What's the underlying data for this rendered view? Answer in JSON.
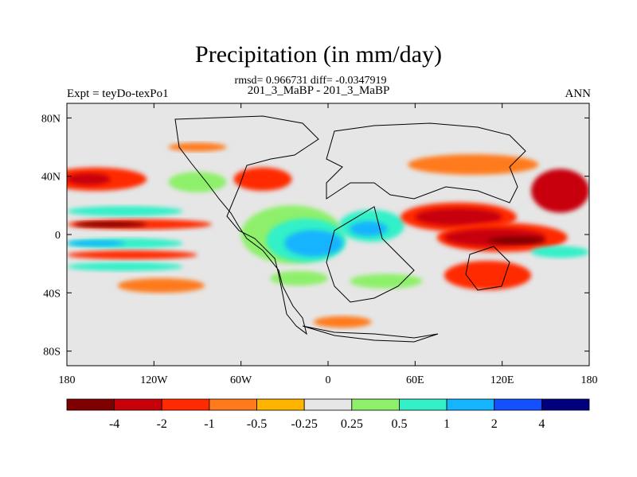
{
  "chart_data": {
    "type": "heatmap",
    "title": "Precipitation (in mm/day)",
    "stats_text": "rmsd= 0.966731 diff= -0.0347919",
    "subtitle": "201_3_MaBP - 201_3_MaBP",
    "left_label": "Expt = teyDo-texPo1",
    "right_label": "ANN",
    "x_ticks": [
      "180",
      "120W",
      "60W",
      "0",
      "60E",
      "120E",
      "180"
    ],
    "x_tick_values": [
      -180,
      -120,
      -60,
      0,
      60,
      120,
      180
    ],
    "y_ticks": [
      "80N",
      "40N",
      "0",
      "40S",
      "80S"
    ],
    "y_tick_values": [
      80,
      40,
      0,
      -40,
      -80
    ],
    "xlim": [
      -180,
      180
    ],
    "ylim": [
      -90,
      90
    ],
    "colorbar": {
      "levels": [
        "-4",
        "-2",
        "-1",
        "-0.5",
        "-0.25",
        "0.25",
        "0.5",
        "1",
        "2",
        "4"
      ],
      "level_values": [
        -4,
        -2,
        -1,
        -0.5,
        -0.25,
        0.25,
        0.5,
        1,
        2,
        4
      ],
      "colors": [
        "#7f0000",
        "#c8000a",
        "#ff2a00",
        "#ff7a1a",
        "#ffb400",
        "#e6e6e6",
        "#8ef06a",
        "#33f0c8",
        "#14b4ff",
        "#1450ff",
        "#00007f"
      ]
    },
    "regions": [
      {
        "name": "north-pacific-dry",
        "lon": -160,
        "lat": 38,
        "width_deg": 70,
        "height_deg": 16,
        "value": -1
      },
      {
        "name": "north-pacific-dry-core",
        "lon": -165,
        "lat": 38,
        "width_deg": 30,
        "height_deg": 8,
        "value": -2
      },
      {
        "name": "north-pacific-band-1",
        "lon": -135,
        "lat": 22,
        "width_deg": 90,
        "height_deg": 8,
        "value": 0.25
      },
      {
        "name": "north-pacific-band-2",
        "lon": -140,
        "lat": 16,
        "width_deg": 80,
        "height_deg": 7,
        "value": 1
      },
      {
        "name": "pacific-equatorial-dry-n",
        "lon": -130,
        "lat": 7,
        "width_deg": 100,
        "height_deg": 7,
        "value": -1
      },
      {
        "name": "pacific-equatorial-dry-n-core",
        "lon": -150,
        "lat": 7,
        "width_deg": 50,
        "height_deg": 4,
        "value": -4
      },
      {
        "name": "pacific-equatorial-wet",
        "lon": -140,
        "lat": -6,
        "width_deg": 80,
        "height_deg": 7,
        "value": 1
      },
      {
        "name": "pacific-equatorial-wet-core",
        "lon": -160,
        "lat": -6,
        "width_deg": 40,
        "height_deg": 4,
        "value": 2
      },
      {
        "name": "pacific-equatorial-dry-s",
        "lon": -135,
        "lat": -14,
        "width_deg": 90,
        "height_deg": 6,
        "value": -1
      },
      {
        "name": "south-pacific-wet",
        "lon": -140,
        "lat": -22,
        "width_deg": 80,
        "height_deg": 6,
        "value": 1
      },
      {
        "name": "south-pacific-dry",
        "lon": -115,
        "lat": -35,
        "width_deg": 60,
        "height_deg": 10,
        "value": -0.5
      },
      {
        "name": "north-america-wet",
        "lon": -90,
        "lat": 36,
        "width_deg": 40,
        "height_deg": 14,
        "value": 0.5
      },
      {
        "name": "north-atlantic-dry",
        "lon": -45,
        "lat": 38,
        "width_deg": 40,
        "height_deg": 16,
        "value": -1
      },
      {
        "name": "arctic-dry",
        "lon": -90,
        "lat": 60,
        "width_deg": 40,
        "height_deg": 6,
        "value": -0.5
      },
      {
        "name": "atlantic-wet",
        "lon": -25,
        "lat": 0,
        "width_deg": 70,
        "height_deg": 40,
        "value": 0.5
      },
      {
        "name": "atlantic-wet-mid",
        "lon": -15,
        "lat": -4,
        "width_deg": 55,
        "height_deg": 30,
        "value": 1
      },
      {
        "name": "atlantic-wet-high",
        "lon": -10,
        "lat": -6,
        "width_deg": 40,
        "height_deg": 18,
        "value": 2
      },
      {
        "name": "africa-wet",
        "lon": 30,
        "lat": 6,
        "width_deg": 45,
        "height_deg": 22,
        "value": 1
      },
      {
        "name": "africa-wet-high",
        "lon": 28,
        "lat": 4,
        "width_deg": 26,
        "height_deg": 10,
        "value": 2
      },
      {
        "name": "eurasia-dry",
        "lon": 100,
        "lat": 48,
        "width_deg": 90,
        "height_deg": 14,
        "value": -0.5
      },
      {
        "name": "asia-dry",
        "lon": 90,
        "lat": 12,
        "width_deg": 80,
        "height_deg": 20,
        "value": -1
      },
      {
        "name": "asia-dry-core",
        "lon": 90,
        "lat": 12,
        "width_deg": 60,
        "height_deg": 12,
        "value": -2
      },
      {
        "name": "maritime-dry",
        "lon": 120,
        "lat": -2,
        "width_deg": 90,
        "height_deg": 20,
        "value": -1
      },
      {
        "name": "maritime-dry-core",
        "lon": 115,
        "lat": -2,
        "width_deg": 70,
        "height_deg": 12,
        "value": -2
      },
      {
        "name": "maritime-dry-max",
        "lon": 130,
        "lat": -4,
        "width_deg": 40,
        "height_deg": 5,
        "value": -4
      },
      {
        "name": "west-pacific-dry",
        "lon": 160,
        "lat": 30,
        "width_deg": 40,
        "height_deg": 30,
        "value": -2
      },
      {
        "name": "south-indian-dry",
        "lon": 110,
        "lat": -28,
        "width_deg": 60,
        "height_deg": 20,
        "value": -1
      },
      {
        "name": "southwest-pacific-wet",
        "lon": 160,
        "lat": -12,
        "width_deg": 40,
        "height_deg": 8,
        "value": 1
      },
      {
        "name": "south-ocean-wet",
        "lon": 40,
        "lat": -32,
        "width_deg": 50,
        "height_deg": 10,
        "value": 0.5
      },
      {
        "name": "south-ocean-wet-2",
        "lon": -20,
        "lat": -30,
        "width_deg": 40,
        "height_deg": 10,
        "value": 0.5
      },
      {
        "name": "antarctic-dry",
        "lon": 10,
        "lat": -60,
        "width_deg": 40,
        "height_deg": 8,
        "value": -0.5
      }
    ]
  }
}
